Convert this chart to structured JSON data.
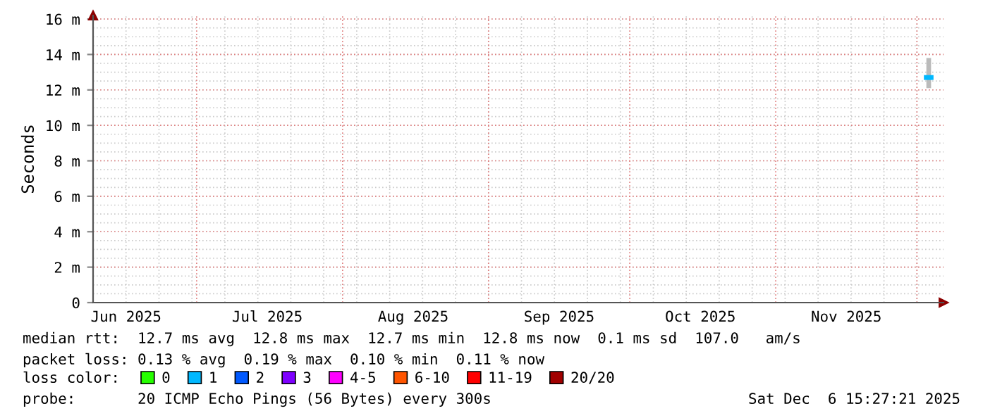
{
  "chart_data": {
    "type": "line",
    "ylabel": "Seconds",
    "xlim": [
      "2025-06-09T00:00",
      "2025-12-06T15:27"
    ],
    "xticks": [
      {
        "value": "2025-06-16",
        "label": "Jun 2025"
      },
      {
        "value": "2025-07-16",
        "label": "Jul 2025"
      },
      {
        "value": "2025-08-16",
        "label": "Aug 2025"
      },
      {
        "value": "2025-09-16",
        "label": "Sep 2025"
      },
      {
        "value": "2025-10-16",
        "label": "Oct 2025"
      },
      {
        "value": "2025-11-16",
        "label": "Nov 2025"
      }
    ],
    "ylim": [
      0,
      16.2
    ],
    "yticks": [
      0,
      {
        "value": 2,
        "label": "2 m"
      },
      {
        "value": 4,
        "label": "4 m"
      },
      {
        "value": 6,
        "label": "6 m"
      },
      {
        "value": 8,
        "label": "8 m"
      },
      {
        "value": 10,
        "label": "10 m"
      },
      {
        "value": 12,
        "label": "12 m"
      },
      {
        "value": 14,
        "label": "14 m"
      },
      {
        "value": 16,
        "label": "16 m"
      }
    ],
    "grid": true,
    "legend": "bottom",
    "legend_title": "loss color:",
    "series": [
      {
        "name": "0",
        "color": "#26ff00"
      },
      {
        "name": "1",
        "color": "#00b8ff",
        "x": [
          "2025-12-03",
          "2025-12-04"
        ],
        "values": [
          12.7,
          12.7
        ],
        "lower": [
          12.1,
          12.1
        ],
        "upper": [
          13.8,
          13.8
        ]
      },
      {
        "name": "2",
        "color": "#0059ff"
      },
      {
        "name": "3",
        "color": "#7e00ff"
      },
      {
        "name": "4-5",
        "color": "#ff00ff"
      },
      {
        "name": "6-10",
        "color": "#ff5500"
      },
      {
        "name": "11-19",
        "color": "#ff0000"
      },
      {
        "name": "20/20",
        "color": "#a10000"
      }
    ],
    "annotations": [
      "median rtt:  12.7 ms avg  12.8 ms max  12.7 ms min  12.8 ms now  0.1 ms sd  107.0   am/s",
      "packet loss: 0.13 % avg  0.19 % max  0.10 % min  0.11 % now",
      "probe:       20 ICMP Echo Pings (56 Bytes) every 300s",
      "Sat Dec  6 15:27:21 2025"
    ]
  }
}
